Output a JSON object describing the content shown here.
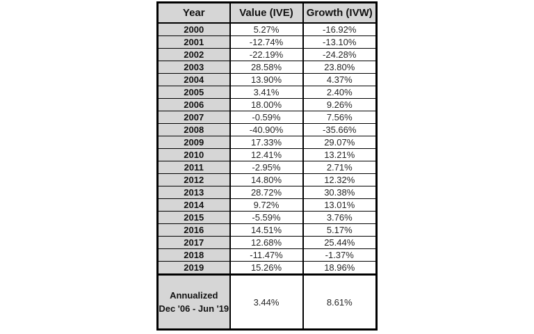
{
  "chart_data": {
    "type": "table",
    "title": "",
    "columns": [
      "Year",
      "Value (IVE)",
      "Growth (IVW)"
    ],
    "rows": [
      [
        "2000",
        "5.27%",
        "-16.92%"
      ],
      [
        "2001",
        "-12.74%",
        "-13.10%"
      ],
      [
        "2002",
        "-22.19%",
        "-24.28%"
      ],
      [
        "2003",
        "28.58%",
        "23.80%"
      ],
      [
        "2004",
        "13.90%",
        "4.37%"
      ],
      [
        "2005",
        "3.41%",
        "2.40%"
      ],
      [
        "2006",
        "18.00%",
        "9.26%"
      ],
      [
        "2007",
        "-0.59%",
        "7.56%"
      ],
      [
        "2008",
        "-40.90%",
        "-35.66%"
      ],
      [
        "2009",
        "17.33%",
        "29.07%"
      ],
      [
        "2010",
        "12.41%",
        "13.21%"
      ],
      [
        "2011",
        "-2.95%",
        "2.71%"
      ],
      [
        "2012",
        "14.80%",
        "12.32%"
      ],
      [
        "2013",
        "28.72%",
        "30.38%"
      ],
      [
        "2014",
        "9.72%",
        "13.01%"
      ],
      [
        "2015",
        "-5.59%",
        "3.76%"
      ],
      [
        "2016",
        "14.51%",
        "5.17%"
      ],
      [
        "2017",
        "12.68%",
        "25.44%"
      ],
      [
        "2018",
        "-11.47%",
        "-1.37%"
      ],
      [
        "2019",
        "15.26%",
        "18.96%"
      ]
    ],
    "summary": {
      "label_lines": [
        "Annualized",
        "Dec '06 - Jun '19"
      ],
      "values": [
        "3.44%",
        "8.61%"
      ]
    }
  },
  "colors": {
    "cell_fill": "#d6d6d6",
    "border": "#000000",
    "value_text": "#262626"
  }
}
